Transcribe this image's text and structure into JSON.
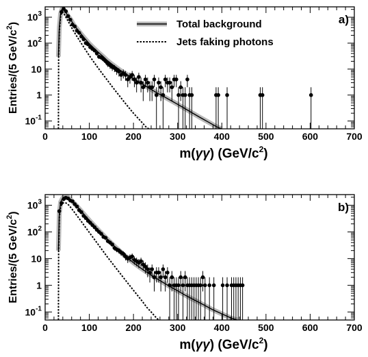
{
  "chart_data": [
    {
      "type": "scatter",
      "panel_label": "a)",
      "xlabel_parts": [
        "m(",
        "γγ",
        ") (GeV/c",
        "2",
        ")"
      ],
      "ylabel_parts": [
        "Entries/(5 GeV/c",
        "2",
        ")"
      ],
      "log_y": true,
      "xlim": [
        0,
        700
      ],
      "ylim": [
        0.05,
        2500
      ],
      "x_ticks": [
        0,
        100,
        200,
        300,
        400,
        500,
        600,
        700
      ],
      "y_ticks": [
        {
          "value": 0.1,
          "base": "10",
          "exp": "-1"
        },
        {
          "value": 1,
          "base": "1",
          "exp": ""
        },
        {
          "value": 10,
          "base": "10",
          "exp": ""
        },
        {
          "value": 100,
          "base": "10",
          "exp": "2"
        },
        {
          "value": 1000,
          "base": "10",
          "exp": "3"
        }
      ],
      "legend": {
        "position": "top-center",
        "entries": [
          {
            "label": "Total background",
            "style": "band"
          },
          {
            "label": "Jets faking photons",
            "style": "dotted"
          }
        ]
      },
      "series": [
        {
          "name": "Total background",
          "style": "band",
          "points": [
            [
              30,
              30
            ],
            [
              32,
              400
            ],
            [
              35,
              1400
            ],
            [
              38,
              2000
            ],
            [
              42,
              1900
            ],
            [
              47,
              1500
            ],
            [
              52,
              1100
            ],
            [
              58,
              800
            ],
            [
              65,
              500
            ],
            [
              72,
              360
            ],
            [
              80,
              240
            ],
            [
              90,
              150
            ],
            [
              100,
              95
            ],
            [
              110,
              65
            ],
            [
              120,
              45
            ],
            [
              130,
              32
            ],
            [
              140,
              22
            ],
            [
              150,
              16
            ],
            [
              170,
              9
            ],
            [
              190,
              5.5
            ],
            [
              210,
              3.4
            ],
            [
              230,
              2.1
            ],
            [
              250,
              1.3
            ],
            [
              270,
              0.85
            ],
            [
              290,
              0.55
            ],
            [
              310,
              0.35
            ],
            [
              330,
              0.22
            ],
            [
              350,
              0.14
            ],
            [
              370,
              0.09
            ],
            [
              390,
              0.058
            ],
            [
              400,
              0.05
            ]
          ]
        },
        {
          "name": "Jets faking photons",
          "style": "dotted",
          "points": [
            [
              30,
              0.05
            ],
            [
              30.5,
              30
            ],
            [
              32,
              300
            ],
            [
              35,
              1100
            ],
            [
              38,
              1600
            ],
            [
              42,
              1400
            ],
            [
              47,
              1000
            ],
            [
              52,
              700
            ],
            [
              58,
              450
            ],
            [
              65,
              280
            ],
            [
              72,
              180
            ],
            [
              80,
              110
            ],
            [
              90,
              60
            ],
            [
              100,
              33
            ],
            [
              110,
              19
            ],
            [
              120,
              11
            ],
            [
              130,
              6.5
            ],
            [
              140,
              3.9
            ],
            [
              150,
              2.3
            ],
            [
              160,
              1.4
            ],
            [
              170,
              0.85
            ],
            [
              180,
              0.52
            ],
            [
              190,
              0.32
            ],
            [
              200,
              0.2
            ],
            [
              210,
              0.13
            ],
            [
              220,
              0.085
            ],
            [
              230,
              0.055
            ],
            [
              235,
              0.05
            ]
          ]
        },
        {
          "name": "Data",
          "style": "points",
          "points": [
            [
              37,
              1600
            ],
            [
              42,
              2100
            ],
            [
              47,
              1700
            ],
            [
              52,
              1100
            ],
            [
              57,
              800
            ],
            [
              62,
              520
            ],
            [
              67,
              440
            ],
            [
              72,
              300
            ],
            [
              77,
              250
            ],
            [
              82,
              180
            ],
            [
              87,
              140
            ],
            [
              92,
              100
            ],
            [
              97,
              90
            ],
            [
              102,
              70
            ],
            [
              107,
              60
            ],
            [
              112,
              52
            ],
            [
              117,
              40
            ],
            [
              122,
              30
            ],
            [
              127,
              28
            ],
            [
              132,
              24
            ],
            [
              137,
              20
            ],
            [
              142,
              16
            ],
            [
              147,
              14
            ],
            [
              152,
              12
            ],
            [
              157,
              11
            ],
            [
              162,
              9
            ],
            [
              167,
              8
            ],
            [
              172,
              6
            ],
            [
              177,
              7
            ],
            [
              182,
              6
            ],
            [
              187,
              4
            ],
            [
              192,
              5
            ],
            [
              197,
              6
            ],
            [
              202,
              4
            ],
            [
              207,
              3
            ],
            [
              212,
              5
            ],
            [
              217,
              3
            ],
            [
              222,
              2
            ],
            [
              227,
              4
            ],
            [
              232,
              3
            ],
            [
              237,
              2
            ],
            [
              242,
              2
            ],
            [
              247,
              4
            ],
            [
              252,
              1
            ],
            [
              257,
              3
            ],
            [
              262,
              2
            ],
            [
              267,
              1
            ],
            [
              272,
              4
            ],
            [
              277,
              3
            ],
            [
              282,
              3
            ],
            [
              287,
              2
            ],
            [
              292,
              4
            ],
            [
              297,
              4
            ],
            [
              302,
              1
            ],
            [
              307,
              2
            ],
            [
              312,
              1
            ],
            [
              317,
              1
            ],
            [
              322,
              4
            ],
            [
              327,
              1
            ],
            [
              332,
              1
            ],
            [
              387,
              1
            ],
            [
              392,
              1
            ],
            [
              412,
              1
            ],
            [
              487,
              1
            ],
            [
              492,
              1
            ],
            [
              602,
              1
            ]
          ]
        }
      ]
    },
    {
      "type": "scatter",
      "panel_label": "b)",
      "xlabel_parts": [
        "m(",
        "γγ",
        ") (GeV/c",
        "2",
        ")"
      ],
      "ylabel_parts": [
        "Entries/(5 GeV/c",
        "2",
        ")"
      ],
      "log_y": true,
      "xlim": [
        0,
        700
      ],
      "ylim": [
        0.05,
        2500
      ],
      "x_ticks": [
        0,
        100,
        200,
        300,
        400,
        500,
        600,
        700
      ],
      "y_ticks": [
        {
          "value": 0.1,
          "base": "10",
          "exp": "-1"
        },
        {
          "value": 1,
          "base": "1",
          "exp": ""
        },
        {
          "value": 10,
          "base": "10",
          "exp": ""
        },
        {
          "value": 100,
          "base": "10",
          "exp": "2"
        },
        {
          "value": 1000,
          "base": "10",
          "exp": "3"
        }
      ],
      "legend": null,
      "series": [
        {
          "name": "Total background",
          "style": "band",
          "points": [
            [
              30,
              20
            ],
            [
              32,
              500
            ],
            [
              35,
              1300
            ],
            [
              40,
              1900
            ],
            [
              45,
              2100
            ],
            [
              50,
              2050
            ],
            [
              55,
              1800
            ],
            [
              60,
              1500
            ],
            [
              70,
              1000
            ],
            [
              80,
              650
            ],
            [
              90,
              420
            ],
            [
              100,
              270
            ],
            [
              120,
              120
            ],
            [
              140,
              55
            ],
            [
              160,
              26
            ],
            [
              180,
              13
            ],
            [
              200,
              7
            ],
            [
              220,
              4
            ],
            [
              240,
              2.4
            ],
            [
              260,
              1.5
            ],
            [
              280,
              0.95
            ],
            [
              300,
              0.62
            ],
            [
              320,
              0.4
            ],
            [
              340,
              0.27
            ],
            [
              360,
              0.18
            ],
            [
              380,
              0.12
            ],
            [
              400,
              0.085
            ],
            [
              420,
              0.06
            ],
            [
              435,
              0.05
            ]
          ]
        },
        {
          "name": "Jets faking photons",
          "style": "dotted",
          "points": [
            [
              30,
              0.05
            ],
            [
              30.5,
              20
            ],
            [
              32,
              350
            ],
            [
              35,
              900
            ],
            [
              40,
              1200
            ],
            [
              45,
              1250
            ],
            [
              50,
              1150
            ],
            [
              55,
              950
            ],
            [
              60,
              750
            ],
            [
              70,
              450
            ],
            [
              80,
              270
            ],
            [
              90,
              160
            ],
            [
              100,
              95
            ],
            [
              120,
              34
            ],
            [
              140,
              12
            ],
            [
              160,
              4.5
            ],
            [
              180,
              1.7
            ],
            [
              200,
              0.65
            ],
            [
              220,
              0.25
            ],
            [
              230,
              0.15
            ],
            [
              240,
              0.1
            ],
            [
              250,
              0.065
            ],
            [
              257,
              0.05
            ]
          ]
        },
        {
          "name": "Data",
          "style": "points",
          "points": [
            [
              32,
              600
            ],
            [
              37,
              1200
            ],
            [
              42,
              1700
            ],
            [
              47,
              1900
            ],
            [
              52,
              1800
            ],
            [
              57,
              1500
            ],
            [
              62,
              1400
            ],
            [
              67,
              1100
            ],
            [
              72,
              900
            ],
            [
              77,
              650
            ],
            [
              82,
              550
            ],
            [
              87,
              400
            ],
            [
              92,
              330
            ],
            [
              97,
              260
            ],
            [
              102,
              220
            ],
            [
              107,
              180
            ],
            [
              112,
              150
            ],
            [
              117,
              120
            ],
            [
              122,
              100
            ],
            [
              127,
              85
            ],
            [
              132,
              65
            ],
            [
              137,
              60
            ],
            [
              142,
              45
            ],
            [
              147,
              40
            ],
            [
              152,
              34
            ],
            [
              157,
              25
            ],
            [
              162,
              22
            ],
            [
              167,
              20
            ],
            [
              172,
              17
            ],
            [
              177,
              15
            ],
            [
              182,
              12
            ],
            [
              187,
              10
            ],
            [
              192,
              11
            ],
            [
              197,
              12
            ],
            [
              202,
              9
            ],
            [
              207,
              8
            ],
            [
              212,
              7
            ],
            [
              217,
              8
            ],
            [
              222,
              6
            ],
            [
              227,
              5
            ],
            [
              232,
              4
            ],
            [
              237,
              3
            ],
            [
              242,
              4
            ],
            [
              247,
              2
            ],
            [
              252,
              3
            ],
            [
              257,
              3
            ],
            [
              262,
              2
            ],
            [
              267,
              4
            ],
            [
              272,
              2
            ],
            [
              277,
              3
            ],
            [
              282,
              1
            ],
            [
              287,
              2
            ],
            [
              292,
              1
            ],
            [
              297,
              1
            ],
            [
              302,
              1
            ],
            [
              307,
              2
            ],
            [
              312,
              1
            ],
            [
              317,
              2
            ],
            [
              322,
              1
            ],
            [
              327,
              1
            ],
            [
              332,
              1
            ],
            [
              337,
              1
            ],
            [
              342,
              1
            ],
            [
              347,
              1
            ],
            [
              352,
              1
            ],
            [
              357,
              2
            ],
            [
              362,
              1
            ],
            [
              372,
              1
            ],
            [
              382,
              1
            ],
            [
              402,
              1
            ],
            [
              412,
              1
            ],
            [
              422,
              1
            ],
            [
              427,
              1
            ],
            [
              432,
              1
            ],
            [
              437,
              1
            ],
            [
              442,
              1
            ],
            [
              447,
              1
            ]
          ]
        }
      ]
    }
  ]
}
